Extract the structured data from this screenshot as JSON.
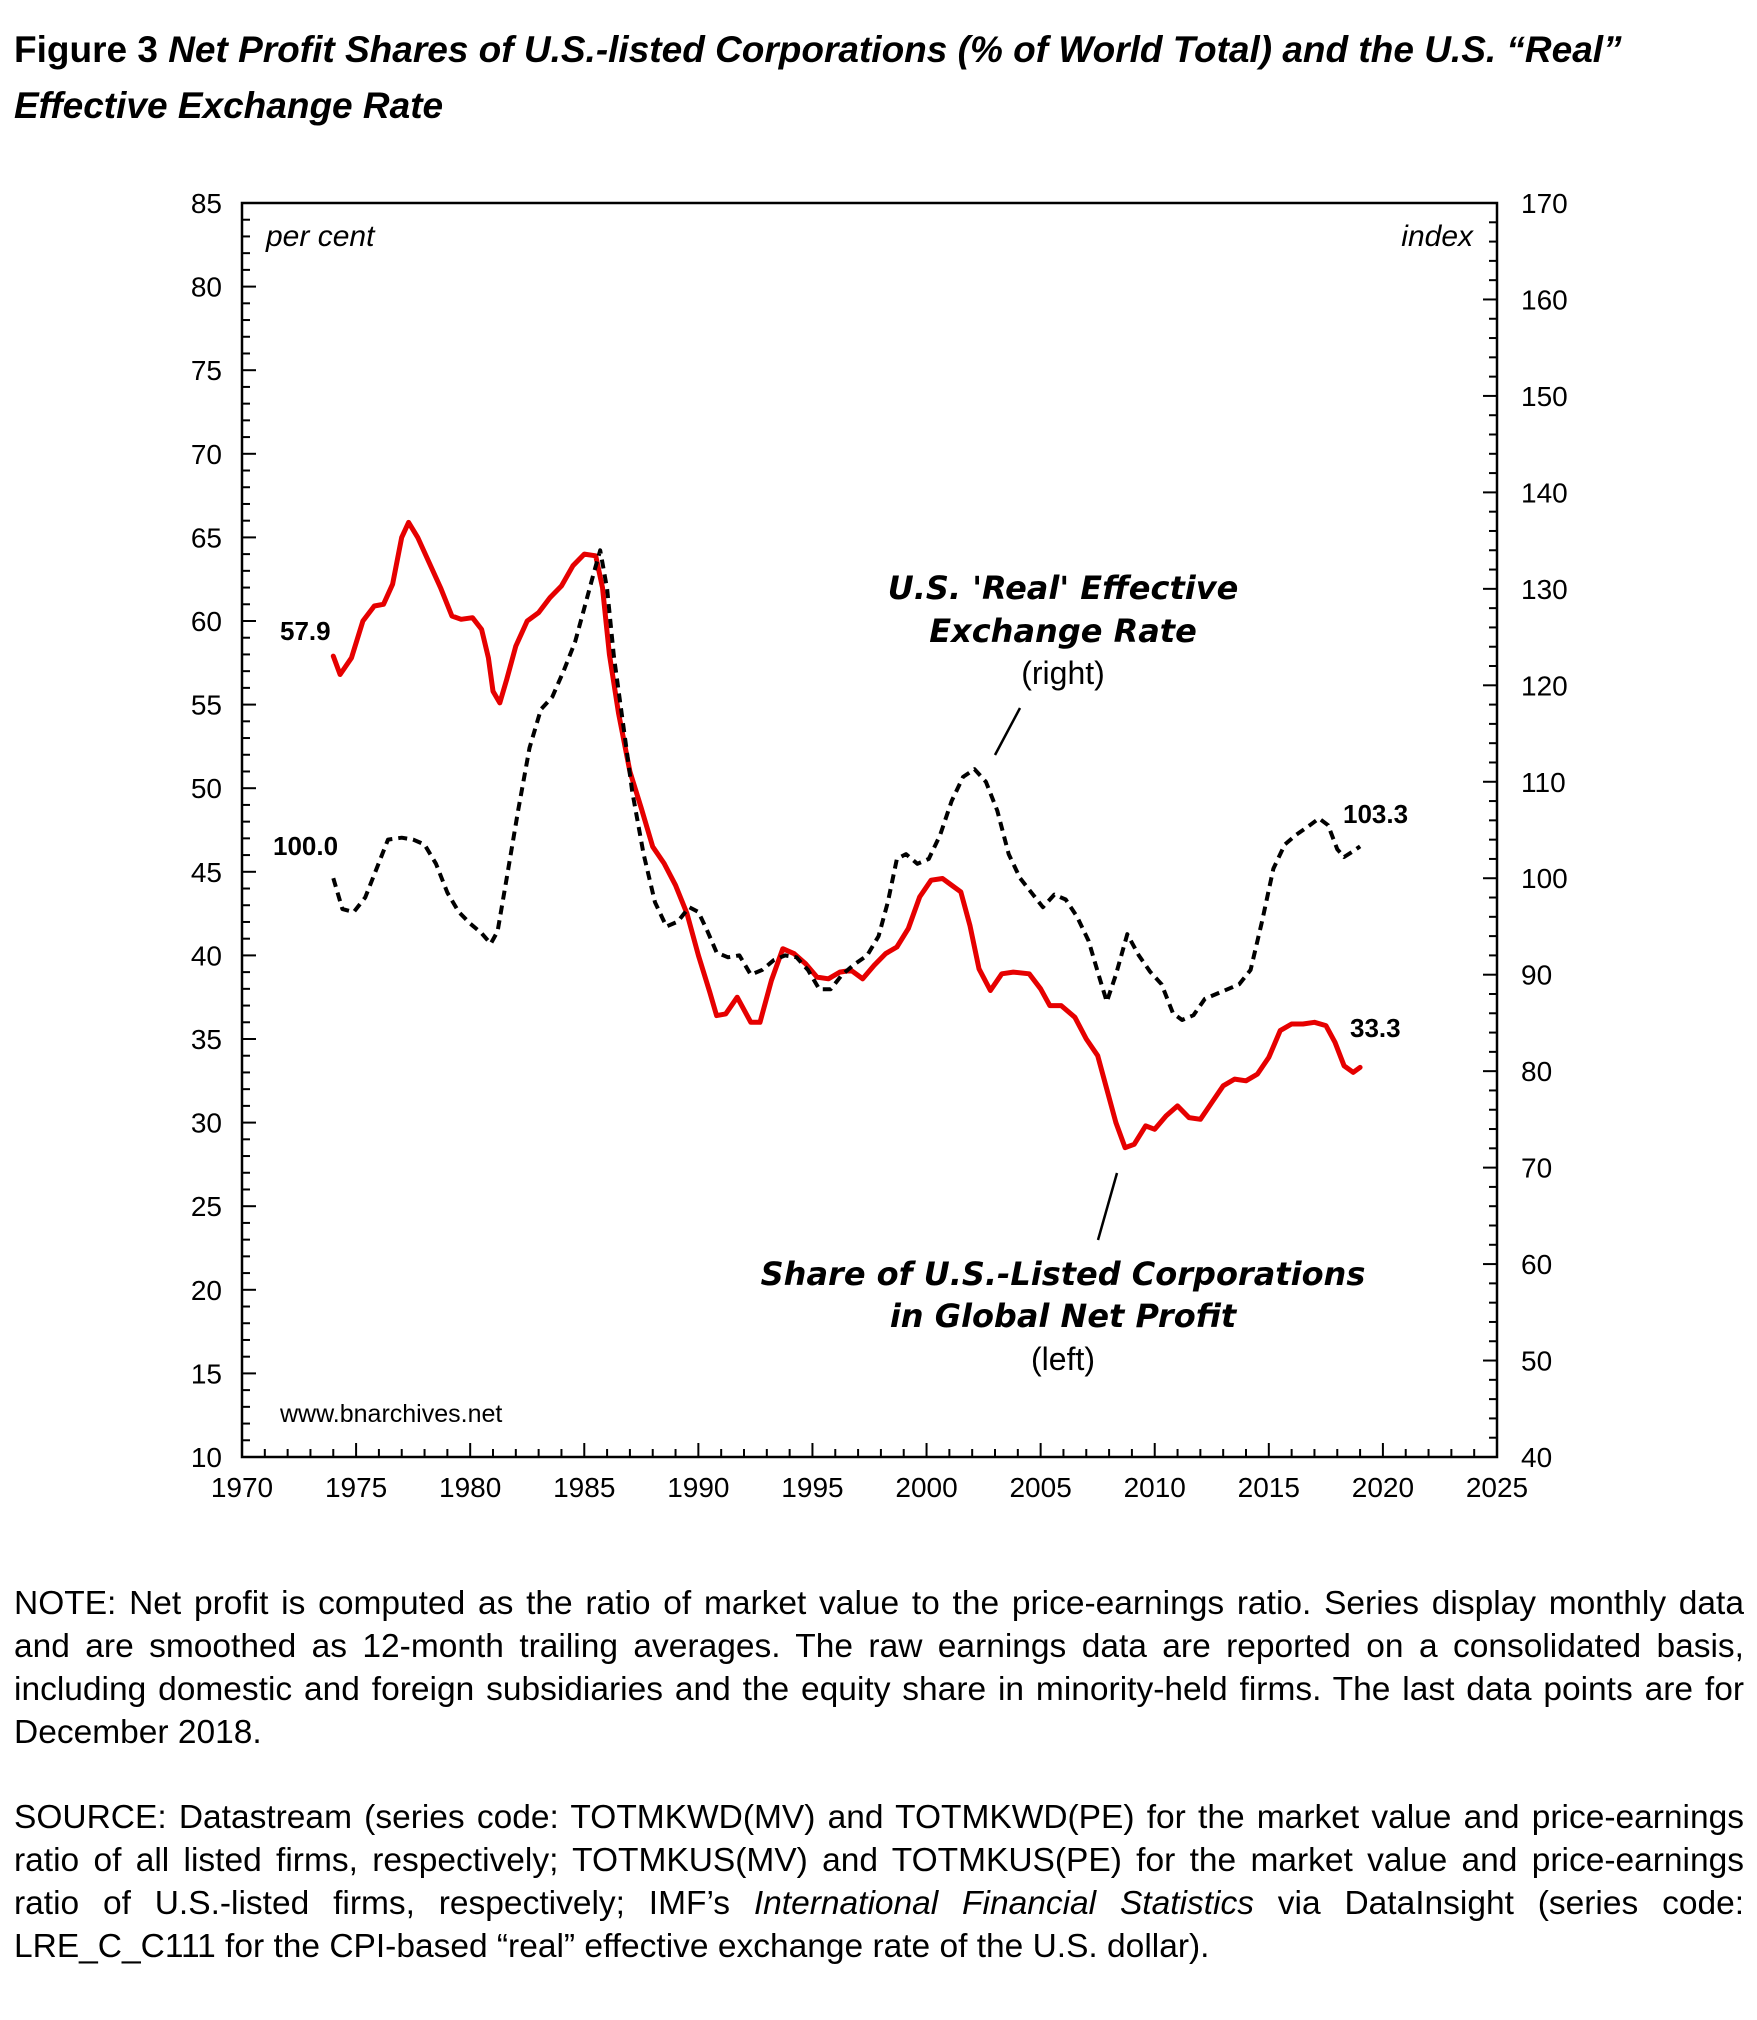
{
  "figure": {
    "number": "Figure 3",
    "title": "Net Profit Shares of U.S.-listed Corporations (% of World Total) and the U.S. “Real” Effective Exchange Rate"
  },
  "chart_data": {
    "type": "line",
    "x_axis": {
      "min": 1970,
      "max": 2025,
      "step": 5,
      "ticks": [
        "1970",
        "1975",
        "1980",
        "1985",
        "1990",
        "1995",
        "2000",
        "2005",
        "2010",
        "2015",
        "2020",
        "2025"
      ]
    },
    "y_left": {
      "label": "per cent",
      "min": 10,
      "max": 85,
      "step": 5,
      "ticks": [
        "10",
        "15",
        "20",
        "25",
        "30",
        "35",
        "40",
        "45",
        "50",
        "55",
        "60",
        "65",
        "70",
        "75",
        "80",
        "85"
      ]
    },
    "y_right": {
      "label": "index",
      "min": 40,
      "max": 170,
      "step": 10,
      "ticks": [
        "40",
        "50",
        "60",
        "70",
        "80",
        "90",
        "100",
        "110",
        "120",
        "130",
        "140",
        "150",
        "160",
        "170"
      ]
    },
    "series": [
      {
        "key": "profit_share",
        "axis": "left",
        "color": "#e60000",
        "style": "solid",
        "end_labels": {
          "start": "57.9",
          "end": "33.3"
        },
        "points": [
          [
            1974.0,
            57.9
          ],
          [
            1974.3,
            56.8
          ],
          [
            1974.8,
            57.8
          ],
          [
            1975.3,
            60.0
          ],
          [
            1975.8,
            60.9
          ],
          [
            1976.2,
            61.0
          ],
          [
            1976.6,
            62.2
          ],
          [
            1977.0,
            65.0
          ],
          [
            1977.3,
            65.9
          ],
          [
            1977.7,
            65.0
          ],
          [
            1978.2,
            63.5
          ],
          [
            1978.7,
            62.0
          ],
          [
            1979.2,
            60.3
          ],
          [
            1979.6,
            60.1
          ],
          [
            1980.1,
            60.2
          ],
          [
            1980.5,
            59.5
          ],
          [
            1980.8,
            57.8
          ],
          [
            1981.0,
            55.8
          ],
          [
            1981.3,
            55.1
          ],
          [
            1981.6,
            56.5
          ],
          [
            1982.0,
            58.5
          ],
          [
            1982.5,
            60.0
          ],
          [
            1983.0,
            60.5
          ],
          [
            1983.5,
            61.4
          ],
          [
            1984.0,
            62.1
          ],
          [
            1984.5,
            63.3
          ],
          [
            1985.0,
            64.0
          ],
          [
            1985.5,
            63.9
          ],
          [
            1985.8,
            62.0
          ],
          [
            1986.1,
            58.0
          ],
          [
            1986.5,
            54.5
          ],
          [
            1987.0,
            51.0
          ],
          [
            1987.5,
            48.8
          ],
          [
            1988.0,
            46.5
          ],
          [
            1988.5,
            45.5
          ],
          [
            1989.0,
            44.2
          ],
          [
            1989.5,
            42.5
          ],
          [
            1990.0,
            40.0
          ],
          [
            1990.5,
            37.8
          ],
          [
            1990.8,
            36.4
          ],
          [
            1991.2,
            36.5
          ],
          [
            1991.7,
            37.5
          ],
          [
            1992.3,
            36.0
          ],
          [
            1992.7,
            36.0
          ],
          [
            1993.2,
            38.5
          ],
          [
            1993.7,
            40.4
          ],
          [
            1994.2,
            40.1
          ],
          [
            1994.7,
            39.5
          ],
          [
            1995.2,
            38.7
          ],
          [
            1995.7,
            38.6
          ],
          [
            1996.2,
            39.0
          ],
          [
            1996.7,
            39.1
          ],
          [
            1997.2,
            38.6
          ],
          [
            1997.7,
            39.4
          ],
          [
            1998.2,
            40.1
          ],
          [
            1998.7,
            40.5
          ],
          [
            1999.2,
            41.6
          ],
          [
            1999.7,
            43.5
          ],
          [
            2000.2,
            44.5
          ],
          [
            2000.7,
            44.6
          ],
          [
            2001.1,
            44.2
          ],
          [
            2001.5,
            43.8
          ],
          [
            2001.9,
            41.8
          ],
          [
            2002.3,
            39.2
          ],
          [
            2002.8,
            37.9
          ],
          [
            2003.3,
            38.9
          ],
          [
            2003.8,
            39.0
          ],
          [
            2004.5,
            38.9
          ],
          [
            2005.0,
            38.0
          ],
          [
            2005.4,
            37.0
          ],
          [
            2005.9,
            37.0
          ],
          [
            2006.5,
            36.3
          ],
          [
            2007.0,
            35.0
          ],
          [
            2007.5,
            34.0
          ],
          [
            2007.9,
            32.0
          ],
          [
            2008.3,
            30.0
          ],
          [
            2008.7,
            28.5
          ],
          [
            2009.1,
            28.7
          ],
          [
            2009.6,
            29.8
          ],
          [
            2010.0,
            29.6
          ],
          [
            2010.5,
            30.4
          ],
          [
            2011.0,
            31.0
          ],
          [
            2011.5,
            30.3
          ],
          [
            2012.0,
            30.2
          ],
          [
            2012.5,
            31.2
          ],
          [
            2013.0,
            32.2
          ],
          [
            2013.5,
            32.6
          ],
          [
            2014.0,
            32.5
          ],
          [
            2014.5,
            32.9
          ],
          [
            2015.0,
            33.9
          ],
          [
            2015.5,
            35.5
          ],
          [
            2016.0,
            35.9
          ],
          [
            2016.5,
            35.9
          ],
          [
            2017.0,
            36.0
          ],
          [
            2017.5,
            35.8
          ],
          [
            2017.9,
            34.8
          ],
          [
            2018.3,
            33.4
          ],
          [
            2018.7,
            33.0
          ],
          [
            2019.0,
            33.3
          ]
        ]
      },
      {
        "key": "exchange_rate",
        "axis": "right",
        "color": "#000000",
        "style": "dashed",
        "end_labels": {
          "start": "100.0",
          "end": "103.3"
        },
        "points": [
          [
            1974.0,
            100.0
          ],
          [
            1974.4,
            96.8
          ],
          [
            1974.9,
            96.5
          ],
          [
            1975.4,
            98.0
          ],
          [
            1975.9,
            101.0
          ],
          [
            1976.4,
            104.0
          ],
          [
            1977.0,
            104.2
          ],
          [
            1977.5,
            104.0
          ],
          [
            1978.0,
            103.5
          ],
          [
            1978.5,
            101.5
          ],
          [
            1979.0,
            98.5
          ],
          [
            1979.5,
            96.5
          ],
          [
            1980.0,
            95.3
          ],
          [
            1980.5,
            94.3
          ],
          [
            1980.9,
            93.2
          ],
          [
            1981.2,
            94.5
          ],
          [
            1981.6,
            100.0
          ],
          [
            1982.1,
            107.0
          ],
          [
            1982.6,
            113.5
          ],
          [
            1983.1,
            117.5
          ],
          [
            1983.6,
            118.8
          ],
          [
            1984.1,
            121.5
          ],
          [
            1984.6,
            124.5
          ],
          [
            1985.0,
            128.0
          ],
          [
            1985.4,
            131.5
          ],
          [
            1985.7,
            134.0
          ],
          [
            1986.0,
            130.0
          ],
          [
            1986.3,
            123.0
          ],
          [
            1986.7,
            116.0
          ],
          [
            1987.1,
            109.0
          ],
          [
            1987.6,
            102.5
          ],
          [
            1988.1,
            97.5
          ],
          [
            1988.6,
            95.0
          ],
          [
            1989.1,
            95.5
          ],
          [
            1989.6,
            97.0
          ],
          [
            1990.0,
            96.5
          ],
          [
            1990.4,
            94.5
          ],
          [
            1990.8,
            92.3
          ],
          [
            1991.3,
            91.8
          ],
          [
            1991.8,
            92.0
          ],
          [
            1992.3,
            90.0
          ],
          [
            1992.8,
            90.5
          ],
          [
            1993.3,
            91.5
          ],
          [
            1993.8,
            92.0
          ],
          [
            1994.3,
            91.8
          ],
          [
            1994.8,
            90.5
          ],
          [
            1995.3,
            88.5
          ],
          [
            1995.8,
            88.5
          ],
          [
            1996.3,
            90.0
          ],
          [
            1996.8,
            91.0
          ],
          [
            1997.4,
            92.0
          ],
          [
            1997.9,
            94.0
          ],
          [
            1998.3,
            97.5
          ],
          [
            1998.7,
            102.0
          ],
          [
            1999.1,
            102.5
          ],
          [
            1999.6,
            101.5
          ],
          [
            2000.1,
            102.0
          ],
          [
            2000.6,
            104.5
          ],
          [
            2001.1,
            108.0
          ],
          [
            2001.6,
            110.5
          ],
          [
            2002.1,
            111.3
          ],
          [
            2002.6,
            110.0
          ],
          [
            2003.1,
            107.0
          ],
          [
            2003.6,
            102.5
          ],
          [
            2004.1,
            100.0
          ],
          [
            2004.6,
            98.5
          ],
          [
            2005.1,
            97.0
          ],
          [
            2005.6,
            98.3
          ],
          [
            2006.1,
            97.8
          ],
          [
            2006.6,
            96.0
          ],
          [
            2007.1,
            93.5
          ],
          [
            2007.6,
            89.5
          ],
          [
            2007.9,
            87.2
          ],
          [
            2008.3,
            90.0
          ],
          [
            2008.8,
            94.2
          ],
          [
            2009.3,
            92.0
          ],
          [
            2009.8,
            90.3
          ],
          [
            2010.3,
            89.0
          ],
          [
            2010.8,
            86.0
          ],
          [
            2011.2,
            85.3
          ],
          [
            2011.7,
            85.8
          ],
          [
            2012.2,
            87.5
          ],
          [
            2012.7,
            88.0
          ],
          [
            2013.2,
            88.5
          ],
          [
            2013.7,
            89.0
          ],
          [
            2014.2,
            90.5
          ],
          [
            2014.7,
            95.5
          ],
          [
            2015.2,
            101.0
          ],
          [
            2015.7,
            103.5
          ],
          [
            2016.2,
            104.5
          ],
          [
            2016.8,
            105.5
          ],
          [
            2017.2,
            106.2
          ],
          [
            2017.6,
            105.5
          ],
          [
            2018.0,
            103.0
          ],
          [
            2018.3,
            102.2
          ],
          [
            2018.7,
            102.8
          ],
          [
            2019.0,
            103.3
          ]
        ]
      }
    ],
    "annotations": {
      "exchange_rate": {
        "line1": "U.S. 'Real' Effective",
        "line2": "Exchange Rate",
        "line3": "(right)"
      },
      "profit_share": {
        "line1": "Share of U.S.-Listed Corporations",
        "line2": "in Global Net Profit",
        "line3": "(left)"
      }
    },
    "source_url": "www.bnarchives.net"
  },
  "notes": {
    "note": "NOTE: Net profit is computed as the ratio of market value to the price-earnings ratio. Series display monthly data and are smoothed as 12-month trailing averages. The raw earnings data are reported on a consolidated basis, including domestic and foreign subsidiaries and the equity share in minority-held firms. The last data points are for December 2018.",
    "source_part1": "SOURCE: Datastream (series code: TOTMKWD(MV) and TOTMKWD(PE) for the market value and price-earnings ratio of all listed firms, respectively; TOTMKUS(MV) and TOTMKUS(PE) for the market value and price-earnings ratio of U.S.-listed firms, respectively; IMF’s ",
    "source_italic": "International Financial Statistics",
    "source_part2": " via DataInsight (series code: LRE_C_C111 for the CPI-based “real” effective exchange rate of the U.S. dollar)."
  }
}
